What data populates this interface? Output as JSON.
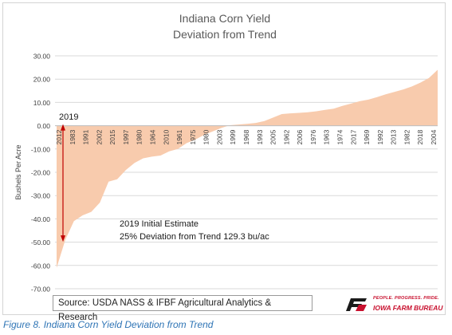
{
  "chart_data": {
    "type": "area",
    "title": [
      "Indiana Corn Yield",
      "Deviation from Trend"
    ],
    "ylabel": "Bushels Per Acre",
    "xlabel": "",
    "ylim": [
      -70,
      30
    ],
    "yticks": [
      "30.00",
      "20.00",
      "10.00",
      "0.00",
      "-10.00",
      "-20.00",
      "-30.00",
      "-40.00",
      "-50.00",
      "-60.00",
      "-70.00"
    ],
    "ytick_values": [
      30,
      20,
      10,
      0,
      -10,
      -20,
      -30,
      -40,
      -50,
      -60,
      -70
    ],
    "x_tick_labels": [
      "2012",
      "1983",
      "1991",
      "2002",
      "2015",
      "1997",
      "1980",
      "1964",
      "2010",
      "1961",
      "1975",
      "1980",
      "2003",
      "1999",
      "1968",
      "1993",
      "2005",
      "1962",
      "2006",
      "1976",
      "1963",
      "1974",
      "2017",
      "1969",
      "1992",
      "2013",
      "1982",
      "2018",
      "2004"
    ],
    "values": [
      -61,
      -49,
      -41,
      -38.5,
      -37,
      -33,
      -24,
      -23,
      -19,
      -16,
      -14,
      -13.3,
      -12.8,
      -11,
      -10,
      -7.5,
      -6,
      -4,
      -2.5,
      -1,
      0.2,
      0.5,
      0.8,
      1.2,
      2,
      3.5,
      5,
      5.3,
      5.5,
      5.8,
      6.2,
      6.8,
      7.3,
      8.5,
      9.5,
      10.5,
      11.2,
      12.3,
      13.5,
      14.5,
      15.5,
      16.8,
      18.5,
      20.5,
      24
    ],
    "fill_color": "#f8cbad",
    "grid": true,
    "annotations": {
      "year_label": "2019",
      "note_line1": "2019  Initial Estimate",
      "note_line2": "25%  Deviation from Trend  129.3 bu/ac",
      "arrow_color": "#c00000"
    },
    "source": "Source: USDA NASS & IFBF Agricultural Analytics & Research"
  },
  "logo": {
    "tagline": "PEOPLE. PROGRESS. PRIDE.",
    "name": "IOWA FARM BUREAU",
    "color": "#c8102e"
  },
  "caption": "Figure 8. Indiana Corn Yield Deviation from Trend"
}
